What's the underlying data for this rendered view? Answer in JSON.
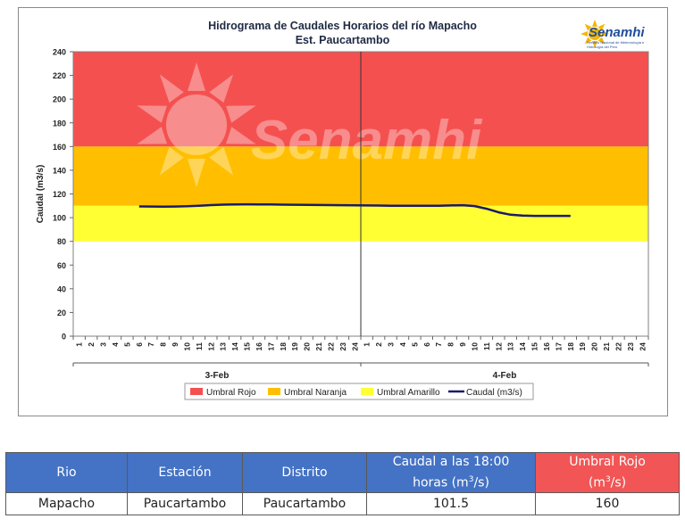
{
  "chart_data": {
    "type": "line",
    "title": "Hidrograma de Caudales Horarios del río Mapacho",
    "subtitle": "Est. Paucartambo",
    "ylabel": "Caudal  (m3/s)",
    "ylim": [
      0,
      240
    ],
    "yticks": [
      0,
      20,
      40,
      60,
      80,
      100,
      120,
      140,
      160,
      180,
      200,
      220,
      240
    ],
    "xtick_labels": [
      "1",
      "2",
      "3",
      "4",
      "5",
      "6",
      "7",
      "8",
      "9",
      "10",
      "11",
      "12",
      "13",
      "14",
      "15",
      "16",
      "17",
      "18",
      "19",
      "20",
      "21",
      "22",
      "23",
      "24",
      "1",
      "2",
      "3",
      "4",
      "5",
      "6",
      "7",
      "8",
      "9",
      "10",
      "11",
      "12",
      "13",
      "14",
      "15",
      "16",
      "17",
      "18",
      "19",
      "20",
      "21",
      "22",
      "23",
      "24"
    ],
    "day_labels": [
      "3-Feb",
      "4-Feb"
    ],
    "bands": [
      {
        "name": "Umbral Rojo",
        "from": 160,
        "to": 240,
        "color": "#f55050"
      },
      {
        "name": "Umbral Naranja",
        "from": 110,
        "to": 160,
        "color": "#ffbf00"
      },
      {
        "name": "Umbral Amarillo",
        "from": 80,
        "to": 110,
        "color": "#ffff33"
      }
    ],
    "series": [
      {
        "name": "Caudal (m3/s)",
        "color": "#1a1a6b",
        "x": [
          6,
          7,
          8,
          9,
          10,
          11,
          12,
          13,
          14,
          15,
          16,
          17,
          18,
          19,
          20,
          21,
          22,
          23,
          24,
          25,
          26,
          27,
          28,
          29,
          30,
          31,
          32,
          33,
          34,
          35,
          36,
          37,
          38,
          39,
          40,
          41,
          42
        ],
        "values": [
          109.5,
          109.4,
          109.3,
          109.4,
          109.6,
          110.1,
          110.6,
          111.0,
          111.2,
          111.3,
          111.2,
          111.1,
          111.0,
          110.9,
          110.8,
          110.7,
          110.6,
          110.5,
          110.4,
          110.3,
          110.2,
          110.1,
          110.0,
          110.0,
          110.0,
          110.1,
          110.3,
          110.5,
          109.8,
          107.5,
          104.5,
          102.5,
          101.8,
          101.5,
          101.5,
          101.5,
          101.5
        ]
      }
    ],
    "legend": [
      "Umbral Rojo",
      "Umbral Naranja",
      "Umbral Amarillo",
      "Caudal (m3/s)"
    ],
    "legend_position": "bottom",
    "watermark": "Senamhi",
    "grid": false
  },
  "logo": {
    "text": "Senamhi",
    "subtext": "Servicio Nacional de Meteorología e Hidrología del Perú"
  },
  "table": {
    "headers": {
      "rio": "Rio",
      "estacion": "Estación",
      "distrito": "Distrito",
      "caudal_line1": "Caudal a las 18:00",
      "caudal_line2": "horas (m",
      "caudal_sup": "3",
      "caudal_end": "/s)",
      "umbral_line1": "Umbral Rojo",
      "umbral_line2": "(m",
      "umbral_sup": "3",
      "umbral_end": "/s)"
    },
    "row": {
      "rio": "Mapacho",
      "estacion": "Paucartambo",
      "distrito": "Paucartambo",
      "caudal": "101.5",
      "umbral": "160"
    }
  }
}
